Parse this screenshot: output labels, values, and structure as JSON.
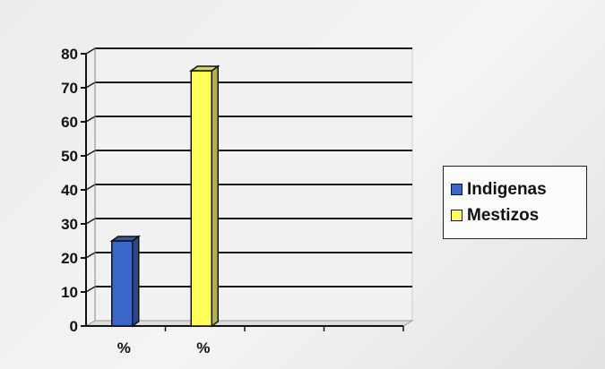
{
  "chart_data": {
    "type": "bar",
    "categories": [
      "%",
      "%"
    ],
    "series": [
      {
        "name": "Indigenas",
        "values": [
          25,
          null
        ],
        "color": "#3a66c8"
      },
      {
        "name": "Mestizos",
        "values": [
          null,
          75
        ],
        "color": "#ffff5a"
      }
    ],
    "title": "",
    "xlabel": "",
    "ylabel": "",
    "ylim": [
      0,
      80
    ],
    "yticks": [
      0,
      10,
      20,
      30,
      40,
      50,
      60,
      70,
      80
    ],
    "grid": true,
    "legend_position": "right",
    "style": "3d-column"
  }
}
